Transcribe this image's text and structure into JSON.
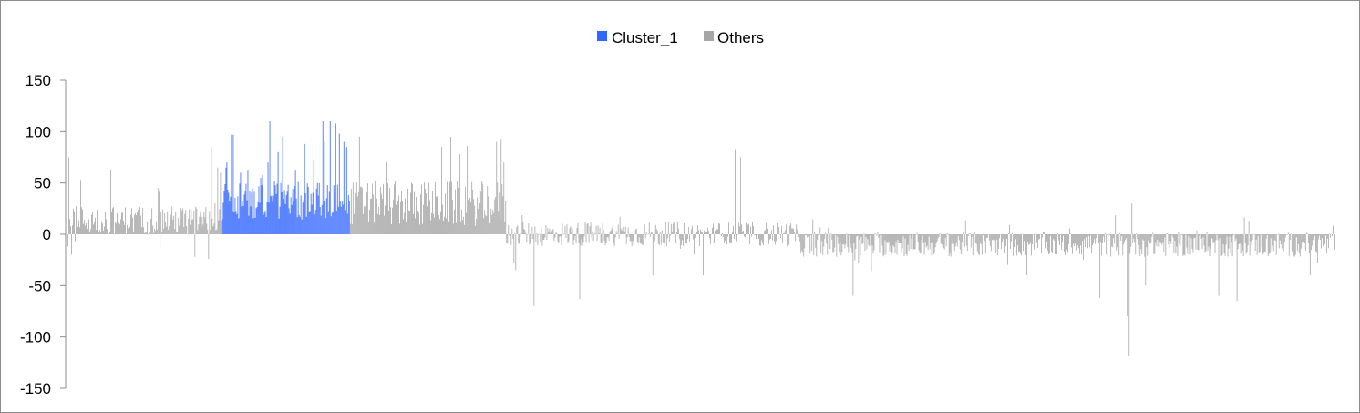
{
  "chart_data": {
    "type": "bar",
    "title": "",
    "xlabel": "",
    "ylabel": "",
    "ylim": [
      -150,
      150
    ],
    "yticks": [
      150,
      100,
      50,
      0,
      -50,
      -100,
      -150
    ],
    "ytick_labels": [
      "150",
      "100",
      "50",
      "0",
      "-50",
      "-100",
      "-150"
    ],
    "legend_position": "top-center",
    "grid": false,
    "n_categories": 1388,
    "series": [
      {
        "name": "Cluster_1",
        "color": "#3366ff",
        "index_range": [
          170,
          310
        ],
        "segments": [
          {
            "from": 170,
            "to": 310,
            "base": 33,
            "amp": 18,
            "spikes": [
              [
                4,
                65
              ],
              [
                10,
                97
              ],
              [
                12,
                97
              ],
              [
                20,
                60
              ],
              [
                28,
                62
              ],
              [
                42,
                55
              ],
              [
                50,
                70
              ],
              [
                52,
                110
              ],
              [
                61,
                80
              ],
              [
                66,
                95
              ],
              [
                80,
                62
              ],
              [
                90,
                88
              ],
              [
                100,
                72
              ],
              [
                110,
                110
              ],
              [
                112,
                90
              ],
              [
                118,
                110
              ],
              [
                124,
                108
              ],
              [
                128,
                98
              ],
              [
                133,
                90
              ],
              [
                136,
                85
              ]
            ]
          }
        ]
      },
      {
        "name": "Others",
        "color": "#a6a6a6",
        "index_range": [
          0,
          1387
        ],
        "segments": [
          {
            "from": 0,
            "to": 170,
            "base": 14,
            "amp": 14,
            "spikes": [
              [
                0,
                87
              ],
              [
                2,
                75
              ],
              [
                15,
                53
              ],
              [
                48,
                63
              ],
              [
                100,
                45
              ],
              [
                158,
                85
              ],
              [
                165,
                65
              ],
              [
                168,
                60
              ],
              [
                5,
                -20
              ],
              [
                140,
                -22
              ],
              [
                155,
                -24
              ]
            ]
          },
          {
            "from": 310,
            "to": 481,
            "base": 30,
            "amp": 22,
            "spikes": [
              [
                10,
                95
              ],
              [
                40,
                70
              ],
              [
                100,
                85
              ],
              [
                110,
                95
              ],
              [
                120,
                78
              ],
              [
                160,
                90
              ],
              [
                165,
                92
              ],
              [
                168,
                70
              ]
            ]
          },
          {
            "from": 481,
            "to": 800,
            "base": 0,
            "amp": 12,
            "spikes": [
              [
                30,
                55
              ],
              [
                250,
                83
              ],
              [
                256,
                75
              ],
              [
                10,
                -35
              ],
              [
                30,
                -70
              ],
              [
                80,
                -63
              ],
              [
                160,
                -40
              ],
              [
                215,
                -40
              ]
            ]
          },
          {
            "from": 800,
            "to": 1388,
            "base": -10,
            "amp": 12,
            "spikes": [
              [
                60,
                -60
              ],
              [
                250,
                -40
              ],
              [
                330,
                -62
              ],
              [
                360,
                -80
              ],
              [
                362,
                -118
              ],
              [
                380,
                -50
              ],
              [
                460,
                -60
              ],
              [
                480,
                -65
              ],
              [
                560,
                -40
              ],
              [
                365,
                30
              ],
              [
                620,
                20
              ]
            ]
          }
        ]
      }
    ]
  },
  "legend": {
    "items": [
      {
        "label": "Cluster_1",
        "color": "#3366ff"
      },
      {
        "label": "Others",
        "color": "#a6a6a6"
      }
    ]
  }
}
